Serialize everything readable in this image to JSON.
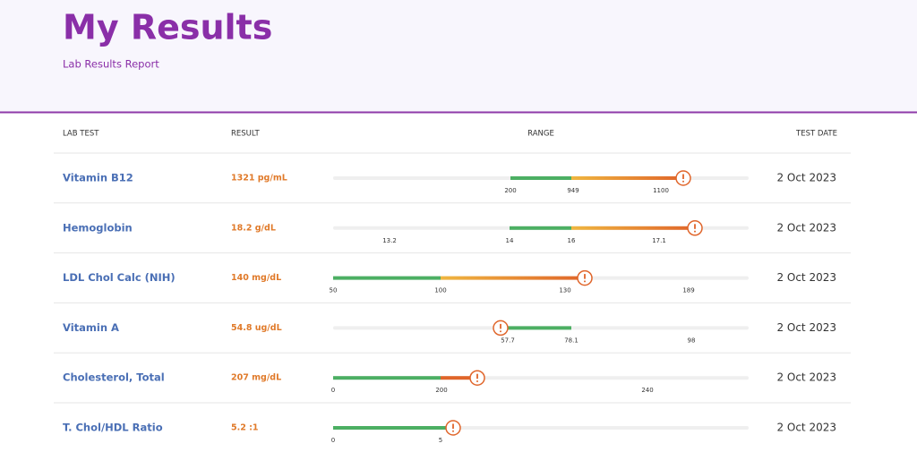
{
  "header": {
    "title": "My Results",
    "subtitle": "Lab Results Report"
  },
  "table": {
    "columns": [
      "LAB TEST",
      "RESULT",
      "RANGE",
      "TEST DATE"
    ],
    "rows": [
      {
        "test": "Vitamin B12",
        "result": "1321 pg/mL",
        "ticks": [
          "200",
          "949",
          "1100"
        ],
        "date": "2 Oct 2023"
      },
      {
        "test": "Hemoglobin",
        "result": "18.2 g/dL",
        "ticks": [
          "13.2",
          "14",
          "16",
          "17.1"
        ],
        "date": "2 Oct 2023"
      },
      {
        "test": "LDL Chol Calc (NIH)",
        "result": "140 mg/dL",
        "ticks": [
          "50",
          "100",
          "130",
          "189"
        ],
        "date": "2 Oct 2023"
      },
      {
        "test": "Vitamin A",
        "result": "54.8 ug/dL",
        "ticks": [
          "57.7",
          "78.1",
          "98"
        ],
        "date": "2 Oct 2023"
      },
      {
        "test": "Cholesterol, Total",
        "result": "207 mg/dL",
        "ticks": [
          "0",
          "200",
          "240"
        ],
        "date": "2 Oct 2023"
      },
      {
        "test": "T. Chol/HDL Ratio",
        "result": "5.2 :1",
        "ticks": [
          "0",
          "5"
        ],
        "date": "2 Oct 2023"
      }
    ]
  }
}
